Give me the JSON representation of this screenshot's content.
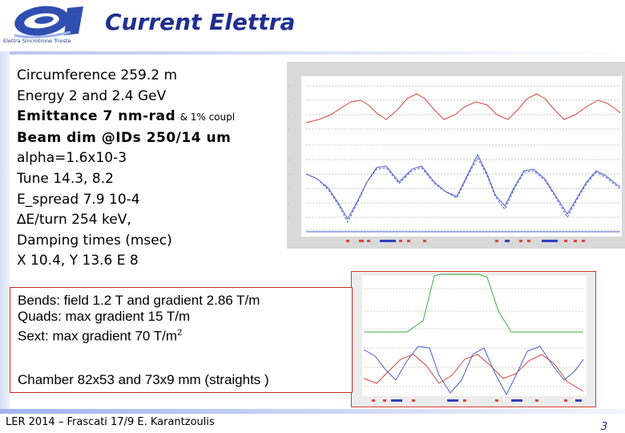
{
  "header": {
    "title": "Current Elettra",
    "logo_caption": "Elettra Sincrotrone Trieste"
  },
  "specs": {
    "circumference": "Circumference 259.2 m",
    "energy": "Energy 2 and 2.4 GeV",
    "emittance": "Emittance 7 nm-rad",
    "emittance_note": "& 1% coupl",
    "beam_dim": "Beam dim @IDs 250/14 um",
    "alpha": "alpha=1.6x10-3",
    "tune": "Tune 14.3, 8.2",
    "espread": "E_spread 7.9 10-4",
    "eturn": "∆E/turn 254 keV,",
    "damping": "Damping times (msec)",
    "damping_values": "X 10.4, Y 13.6 E 8"
  },
  "textbox": {
    "bends": "Bends:  field 1.2 T and gradient  2.86 T/m",
    "quads": "Quads: max gradient 15  T/m",
    "sext_prefix": "Sext: max gradient  70 T/m",
    "sext_sup": "2",
    "chamber": "Chamber 82x53 and 73x9 mm (straights )"
  },
  "footer": {
    "left": "LER 2014 – Frascati 17/9   E. Karantzoulis",
    "page_number": "3"
  },
  "colors": {
    "title": "#1f2f8f",
    "textbox_border": "#c52a1f",
    "plot_red": "#d8453a",
    "plot_blue": "#4a5fd0",
    "plot_green": "#3fae3f"
  }
}
